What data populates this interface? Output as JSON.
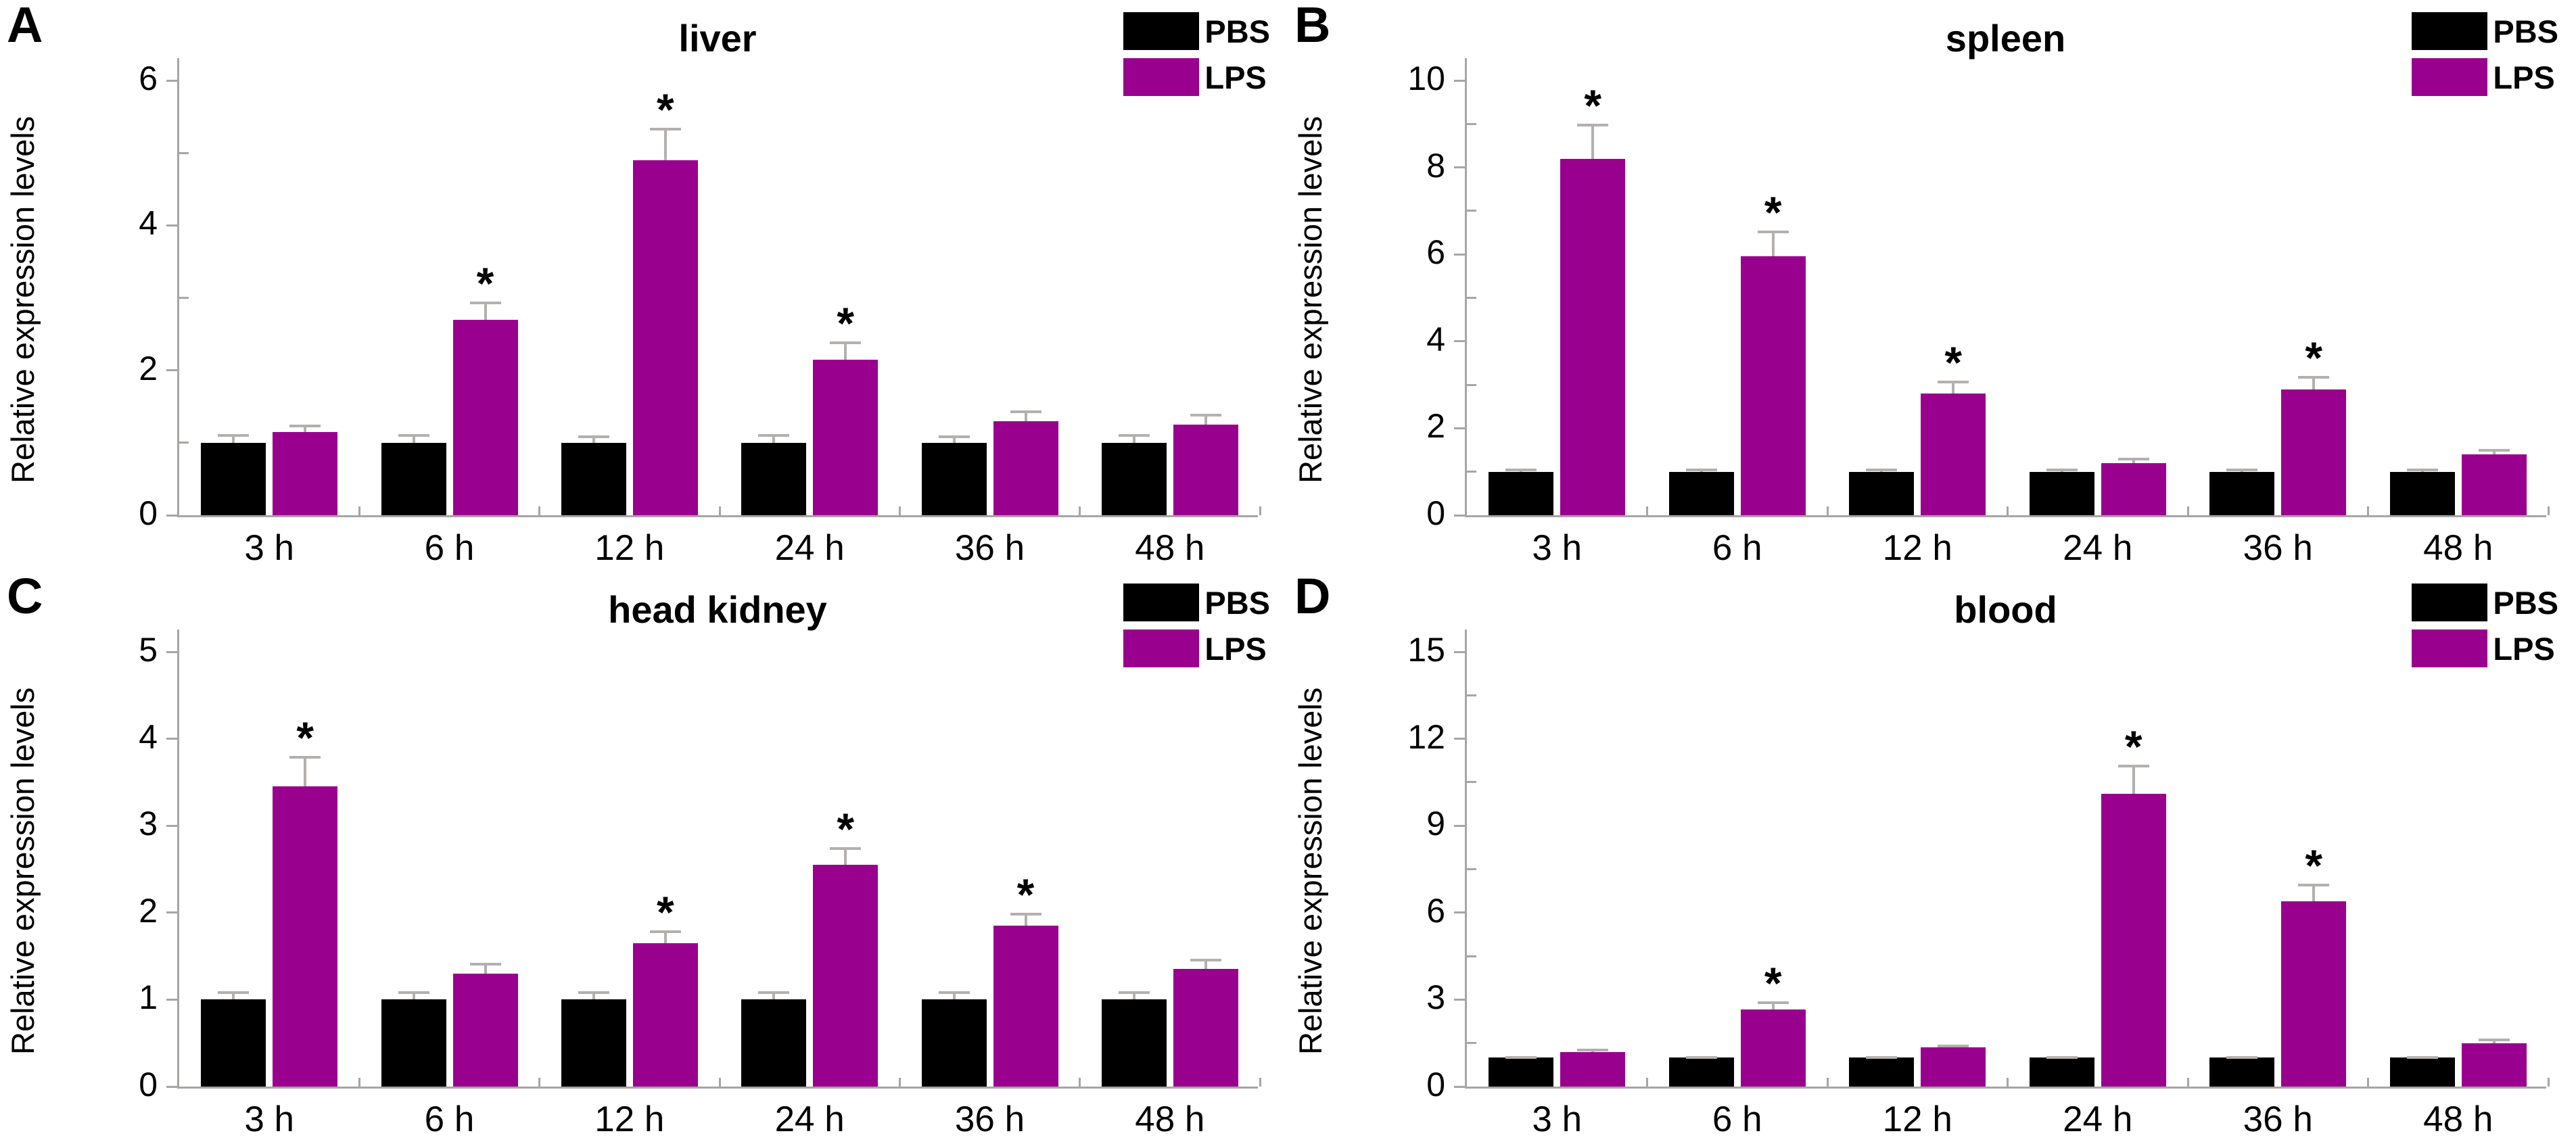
{
  "figure": {
    "significance_marker": "*",
    "style": {
      "pbs_color": "#000000",
      "lps_color": "#9A008E",
      "error_bar_color": "#b3b0ae",
      "axis_color": "#a8a5a3",
      "text_color": "#000000",
      "background": "#ffffff"
    }
  },
  "chart_data": [
    {
      "type": "bar",
      "panel_letter": "A",
      "title": "liver",
      "ylabel": "Relative expression levels",
      "xlabel": "",
      "grid": false,
      "legend_position": "top-right",
      "categories": [
        "3 h",
        "6 h",
        "12 h",
        "24 h",
        "36 h",
        "48 h"
      ],
      "ylim": [
        0,
        6
      ],
      "yticks_major": [
        0,
        2,
        4,
        6
      ],
      "yticks_minor": [
        1,
        3,
        5
      ],
      "series": [
        {
          "name": "PBS",
          "color": "#000000",
          "values": [
            1.0,
            1.0,
            1.0,
            1.0,
            1.0,
            1.0
          ],
          "errors": [
            0.12,
            0.12,
            0.1,
            0.12,
            0.1,
            0.12
          ],
          "significant": [
            false,
            false,
            false,
            false,
            false,
            false
          ]
        },
        {
          "name": "LPS",
          "color": "#9A008E",
          "values": [
            1.15,
            2.7,
            4.9,
            2.15,
            1.3,
            1.25
          ],
          "errors": [
            0.1,
            0.25,
            0.45,
            0.25,
            0.15,
            0.15
          ],
          "significant": [
            false,
            true,
            true,
            true,
            false,
            false
          ]
        }
      ]
    },
    {
      "type": "bar",
      "panel_letter": "B",
      "title": "spleen",
      "ylabel": "Relative expression levels",
      "xlabel": "",
      "grid": false,
      "legend_position": "top-right",
      "categories": [
        "3 h",
        "6 h",
        "12 h",
        "24 h",
        "36 h",
        "48 h"
      ],
      "ylim": [
        0,
        10
      ],
      "yticks_major": [
        0,
        2,
        4,
        6,
        8,
        10
      ],
      "yticks_minor": [
        1,
        3,
        5,
        7,
        9
      ],
      "series": [
        {
          "name": "PBS",
          "color": "#000000",
          "values": [
            1.0,
            1.0,
            1.0,
            1.0,
            1.0,
            1.0
          ],
          "errors": [
            0.08,
            0.08,
            0.08,
            0.08,
            0.08,
            0.08
          ],
          "significant": [
            false,
            false,
            false,
            false,
            false,
            false
          ]
        },
        {
          "name": "LPS",
          "color": "#9A008E",
          "values": [
            8.2,
            5.95,
            2.8,
            1.2,
            2.9,
            1.4
          ],
          "errors": [
            0.8,
            0.6,
            0.3,
            0.12,
            0.3,
            0.12
          ],
          "significant": [
            true,
            true,
            true,
            false,
            true,
            false
          ]
        }
      ]
    },
    {
      "type": "bar",
      "panel_letter": "C",
      "title": "head kidney",
      "ylabel": "Relative expression levels",
      "xlabel": "",
      "grid": false,
      "legend_position": "top-right",
      "categories": [
        "3 h",
        "6 h",
        "12 h",
        "24 h",
        "36 h",
        "48 h"
      ],
      "ylim": [
        0,
        5
      ],
      "yticks_major": [
        0,
        1,
        2,
        3,
        4,
        5
      ],
      "yticks_minor": [],
      "series": [
        {
          "name": "PBS",
          "color": "#000000",
          "values": [
            1.0,
            1.0,
            1.0,
            1.0,
            1.0,
            1.0
          ],
          "errors": [
            0.1,
            0.1,
            0.1,
            0.1,
            0.1,
            0.1
          ],
          "significant": [
            false,
            false,
            false,
            false,
            false,
            false
          ]
        },
        {
          "name": "LPS",
          "color": "#9A008E",
          "values": [
            3.45,
            1.3,
            1.65,
            2.55,
            1.85,
            1.35
          ],
          "errors": [
            0.35,
            0.12,
            0.15,
            0.2,
            0.15,
            0.12
          ],
          "significant": [
            true,
            false,
            true,
            true,
            true,
            false
          ]
        }
      ]
    },
    {
      "type": "bar",
      "panel_letter": "D",
      "title": "blood",
      "ylabel": "Relative expression levels",
      "xlabel": "",
      "grid": false,
      "legend_position": "top-right",
      "categories": [
        "3 h",
        "6 h",
        "12 h",
        "24 h",
        "36 h",
        "48 h"
      ],
      "ylim": [
        0,
        15
      ],
      "yticks_major": [
        0,
        3,
        6,
        9,
        12,
        15
      ],
      "yticks_minor": [
        1.5,
        4.5,
        7.5,
        10.5,
        13.5
      ],
      "series": [
        {
          "name": "PBS",
          "color": "#000000",
          "values": [
            1.0,
            1.0,
            1.0,
            1.0,
            1.0,
            1.0
          ],
          "errors": [
            0.06,
            0.06,
            0.06,
            0.06,
            0.06,
            0.06
          ],
          "significant": [
            false,
            false,
            false,
            false,
            false,
            false
          ]
        },
        {
          "name": "LPS",
          "color": "#9A008E",
          "values": [
            1.2,
            2.65,
            1.35,
            10.1,
            6.4,
            1.5
          ],
          "errors": [
            0.1,
            0.3,
            0.1,
            1.0,
            0.6,
            0.15
          ],
          "significant": [
            false,
            true,
            false,
            true,
            true,
            false
          ]
        }
      ]
    }
  ]
}
